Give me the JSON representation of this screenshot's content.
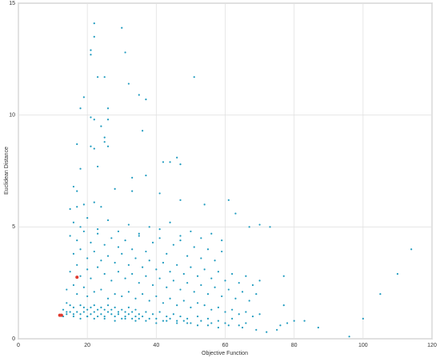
{
  "chart_data": {
    "type": "scatter",
    "xlabel": "Objective Function",
    "ylabel": "Euclidean Distance",
    "xlim": [
      0,
      120
    ],
    "ylim": [
      0,
      15
    ],
    "xticks": [
      0,
      20,
      40,
      60,
      80,
      100,
      120
    ],
    "yticks": [
      0,
      5,
      10,
      15
    ],
    "grid": true,
    "series": [
      {
        "color": "#1f9bbf",
        "x": [
          22,
          30,
          22,
          31,
          21,
          21,
          23,
          25,
          32,
          51,
          19,
          18,
          26,
          35,
          37,
          21,
          22,
          26,
          24,
          36,
          25,
          25,
          26,
          17,
          21,
          22,
          18,
          23,
          37,
          42,
          44,
          46,
          47,
          33,
          16,
          17,
          28,
          33,
          41,
          15,
          17,
          19,
          22,
          24,
          47,
          54,
          61,
          63,
          67,
          70,
          73,
          105,
          110,
          114,
          100,
          96,
          87,
          83,
          76,
          75,
          78,
          80,
          77,
          77,
          13,
          14,
          15,
          16,
          17,
          18,
          19,
          20,
          21,
          22,
          23,
          24,
          25,
          26,
          27,
          28,
          29,
          30,
          31,
          32,
          33,
          34,
          35,
          36,
          38,
          40,
          42,
          44,
          46,
          48,
          50,
          53,
          56,
          60,
          64,
          14,
          15,
          16,
          18,
          19,
          20,
          21,
          22,
          23,
          24,
          25,
          26,
          27,
          28,
          29,
          30,
          31,
          32,
          33,
          34,
          35,
          37,
          39,
          41,
          43,
          45,
          47,
          49,
          52,
          55,
          58,
          62,
          66,
          14,
          16,
          17,
          19,
          20,
          22,
          24,
          26,
          28,
          30,
          32,
          34,
          36,
          38,
          40,
          42,
          44,
          46,
          48,
          50,
          52,
          54,
          56,
          58,
          60,
          62,
          64,
          66,
          68,
          70,
          15,
          17,
          18,
          20,
          21,
          23,
          25,
          27,
          29,
          31,
          33,
          35,
          37,
          39,
          41,
          43,
          45,
          47,
          49,
          51,
          53,
          55,
          57,
          59,
          61,
          63,
          65,
          67,
          69,
          16,
          18,
          20,
          22,
          24,
          26,
          28,
          30,
          32,
          34,
          36,
          38,
          40,
          42,
          44,
          46,
          48,
          50,
          52,
          54,
          56,
          58,
          60,
          62,
          64,
          66,
          68,
          70,
          15,
          17,
          19,
          21,
          23,
          25,
          27,
          29,
          31,
          33,
          35,
          37,
          39,
          41,
          43,
          45,
          47,
          49,
          51,
          53,
          55,
          57,
          59,
          16,
          18,
          20,
          23,
          26,
          29,
          32,
          35,
          38,
          41,
          44,
          47,
          50,
          53,
          56,
          59,
          13,
          14,
          16,
          18,
          20,
          22,
          25,
          28,
          31,
          34,
          37,
          40,
          43,
          46,
          49,
          52,
          55,
          58,
          61,
          65,
          69,
          72
        ],
        "values": [
          14.1,
          13.9,
          13.5,
          12.8,
          12.9,
          12.7,
          11.7,
          11.7,
          11.4,
          11.7,
          10.8,
          10.3,
          10.3,
          10.9,
          10.7,
          9.9,
          9.8,
          9.8,
          9.5,
          9.3,
          9.0,
          8.8,
          8.6,
          8.7,
          8.6,
          8.5,
          7.6,
          7.7,
          7.3,
          7.9,
          7.9,
          8.1,
          7.8,
          7.2,
          6.8,
          6.6,
          6.7,
          6.6,
          6.5,
          5.8,
          5.9,
          6.0,
          6.1,
          5.9,
          6.2,
          6.0,
          6.2,
          5.6,
          5.0,
          5.1,
          5.0,
          2.0,
          2.9,
          4.0,
          0.9,
          0.1,
          0.5,
          0.8,
          0.6,
          0.4,
          0.7,
          0.8,
          2.8,
          1.5,
          1.3,
          1.2,
          1.2,
          1.1,
          1.2,
          1.1,
          1.2,
          1.0,
          1.1,
          1.2,
          1.0,
          1.1,
          1.0,
          1.2,
          1.1,
          1.0,
          1.1,
          0.9,
          1.0,
          1.1,
          0.9,
          1.0,
          0.9,
          1.0,
          0.9,
          0.9,
          0.8,
          0.9,
          0.8,
          0.8,
          0.7,
          0.8,
          0.7,
          0.7,
          0.6,
          1.6,
          1.5,
          1.4,
          1.5,
          1.4,
          1.3,
          1.4,
          1.5,
          1.3,
          1.4,
          1.3,
          1.5,
          1.3,
          1.4,
          1.2,
          1.3,
          1.2,
          1.4,
          1.2,
          1.3,
          1.1,
          1.2,
          1.1,
          1.2,
          1.0,
          1.1,
          1.0,
          0.9,
          1.0,
          0.9,
          0.8,
          0.9,
          0.7,
          2.2,
          2.4,
          2.0,
          2.3,
          1.9,
          2.1,
          2.2,
          1.8,
          2.0,
          1.9,
          2.1,
          1.8,
          2.0,
          1.7,
          1.9,
          1.6,
          1.8,
          1.5,
          1.7,
          1.4,
          1.6,
          1.5,
          1.3,
          1.4,
          1.2,
          1.3,
          1.1,
          1.2,
          1.0,
          1.1,
          3.0,
          3.3,
          2.8,
          3.1,
          2.7,
          3.2,
          2.9,
          2.6,
          3.0,
          2.7,
          2.9,
          2.5,
          2.8,
          2.4,
          2.7,
          2.3,
          2.6,
          2.2,
          2.5,
          2.1,
          2.4,
          2.0,
          2.3,
          1.9,
          2.2,
          1.8,
          2.1,
          1.7,
          2.0,
          3.8,
          4.0,
          3.6,
          3.9,
          3.5,
          3.7,
          3.4,
          3.8,
          3.3,
          3.6,
          3.2,
          3.5,
          3.1,
          3.4,
          3.0,
          3.3,
          2.9,
          3.2,
          2.8,
          3.1,
          2.7,
          3.0,
          2.6,
          2.9,
          2.5,
          2.8,
          2.4,
          2.6,
          4.6,
          4.4,
          4.8,
          4.3,
          4.7,
          4.2,
          4.5,
          4.1,
          4.4,
          4.0,
          4.6,
          3.9,
          4.3,
          4.5,
          3.8,
          4.2,
          4.4,
          3.7,
          4.1,
          3.6,
          4.0,
          3.5,
          3.9,
          5.2,
          5.0,
          5.4,
          4.9,
          5.3,
          4.8,
          5.1,
          4.7,
          5.0,
          4.9,
          5.2,
          4.6,
          4.8,
          4.5,
          4.7,
          4.4,
          1.0,
          1.1,
          1.0,
          0.9,
          1.0,
          0.9,
          0.9,
          0.8,
          0.9,
          0.8,
          0.8,
          0.7,
          0.8,
          0.7,
          0.7,
          0.6,
          0.6,
          0.5,
          0.6,
          0.5,
          0.4,
          0.3
        ]
      },
      {
        "color": "#e03a2f",
        "x": [
          17,
          12,
          12.5
        ],
        "values": [
          2.75,
          1.05,
          1.05
        ]
      }
    ]
  }
}
